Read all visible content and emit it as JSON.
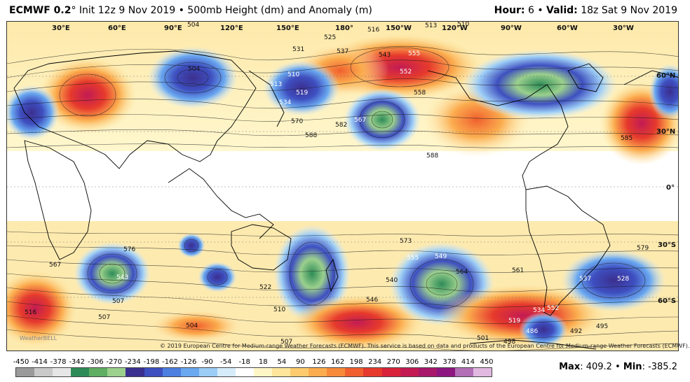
{
  "header": {
    "model": "ECMWF 0.2",
    "degree": "°",
    "init": "Init 12z 9 Nov 2019",
    "separator": "•",
    "field": "500mb Height (dm) and Anomaly (m)",
    "hour_label": "Hour:",
    "hour_value": "6",
    "valid_label": "Valid:",
    "valid_value": "18z Sat 9 Nov 2019"
  },
  "map": {
    "lon_labels": [
      "30°E",
      "60°E",
      "90°E",
      "120°E",
      "150°E",
      "180°",
      "150°W",
      "120°W",
      "90°W",
      "60°W",
      "30°W"
    ],
    "lat_labels": [
      "60°N",
      "30°N",
      "0°",
      "30°S",
      "60°S"
    ],
    "contour_labels": [
      "504",
      "516",
      "513",
      "510",
      "525",
      "531",
      "537",
      "543",
      "555",
      "552",
      "558",
      "504",
      "510",
      "519",
      "513",
      "534",
      "570",
      "567",
      "582",
      "585",
      "588",
      "588",
      "576",
      "573",
      "579",
      "549",
      "555",
      "537",
      "528",
      "516",
      "507",
      "486",
      "492",
      "495",
      "498",
      "501",
      "561",
      "564",
      "567",
      "540",
      "546",
      "552",
      "519",
      "522",
      "534",
      "543",
      "507",
      "504",
      "510",
      "507"
    ],
    "copyright": "© 2019 European Centre for Medium-range Weather Forecasts (ECMWF). This service is based on data and products of the European Centre for Medium-range Weather Forecasts (ECMWF).",
    "watermark": "WeatherBELL"
  },
  "colorbar": {
    "ticks": [
      "-450",
      "-414",
      "-378",
      "-342",
      "-306",
      "-270",
      "-234",
      "-198",
      "-162",
      "-126",
      "-90",
      "-54",
      "-18",
      "18",
      "54",
      "90",
      "126",
      "162",
      "198",
      "234",
      "270",
      "306",
      "342",
      "378",
      "414",
      "450"
    ],
    "colors": [
      "#9a9a9a",
      "#c9c9c9",
      "#e6e6e6",
      "#2e8b57",
      "#5fae64",
      "#9bd08d",
      "#3b2f8f",
      "#3e4fc0",
      "#4d7fe0",
      "#6aa8f0",
      "#9ccdf6",
      "#d6ecfb",
      "#ffffff",
      "#fff6c6",
      "#fde59b",
      "#fdcb6e",
      "#fbac4e",
      "#f68a3a",
      "#f0602e",
      "#e63a2c",
      "#d8233a",
      "#c21b54",
      "#a8186b",
      "#8d1780",
      "#b26fb6",
      "#e1b8e0"
    ]
  },
  "stats": {
    "max_label": "Max",
    "max_value": "409.2",
    "min_label": "Min",
    "min_value": "-385.2"
  }
}
